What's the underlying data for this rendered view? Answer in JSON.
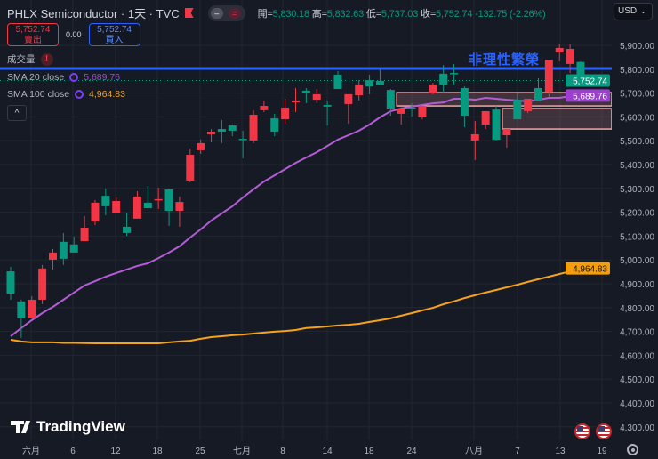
{
  "header": {
    "symbol": "PHLX Semiconductor",
    "interval": "1天",
    "source": "TVC",
    "title": "PHLX Semiconductor · 1天 · TVC",
    "ohlc": [
      {
        "k": "開",
        "v": "5,830.18"
      },
      {
        "k": "高",
        "v": "5,832.63"
      },
      {
        "k": "低",
        "v": "5,737.03"
      },
      {
        "k": "收",
        "v": "5,752.74"
      }
    ],
    "change": "-132.75 (-2.26%)"
  },
  "trade": {
    "sell_price": "5,752.74",
    "sell_label": "賣出",
    "spread": "0.00",
    "buy_price": "5,752.74",
    "buy_label": "買入"
  },
  "legend": {
    "volume": "成交量",
    "volume_warning": "!",
    "sma20_label": "SMA 20 close",
    "sma20_value": "5,689.76",
    "sma100_label": "SMA 100 close",
    "sma100_value": "4,964.83",
    "collapse": "^"
  },
  "currency": "USD",
  "annotation": "非理性繁榮",
  "brand": "TradingView",
  "colors": {
    "up": "#f23645",
    "down": "#089981",
    "sma20": "#b35cd6",
    "sma100": "#f7a21b",
    "hline": "#2962ff",
    "zone": "#f4a6a6",
    "background": "#161a25"
  },
  "icons": [
    "flag-icon",
    "indicator-toggle-icon",
    "warning-icon",
    "collapse-icon",
    "chevron-down-icon",
    "us-flag-event-icon",
    "settings-gear-icon"
  ],
  "chart_data": {
    "type": "candlestick",
    "ylim": [
      4300,
      5950
    ],
    "y_ticks": [
      "5,900.00",
      "5,800.00",
      "5,700.00",
      "5,600.00",
      "5,500.00",
      "5,400.00",
      "5,300.00",
      "5,200.00",
      "5,100.00",
      "5,000.00",
      "4,900.00",
      "4,800.00",
      "4,700.00",
      "4,600.00",
      "4,500.00",
      "4,400.00",
      "4,300.00"
    ],
    "y_tick_values": [
      5900,
      5800,
      5700,
      5600,
      5500,
      5400,
      5300,
      5200,
      5100,
      5000,
      4900,
      4800,
      4700,
      4600,
      4500,
      4400,
      4300
    ],
    "x_ticks": [
      "六月",
      "6",
      "12",
      "18",
      "25",
      "七月",
      "8",
      "14",
      "18",
      "24",
      "八月",
      "7",
      "13",
      "19"
    ],
    "grid": true,
    "ohlc": [
      [
        4952,
        4971,
        4833,
        4859
      ],
      [
        4826,
        4833,
        4673,
        4755
      ],
      [
        4755,
        4848,
        4755,
        4833
      ],
      [
        4833,
        4979,
        4815,
        4964
      ],
      [
        5001,
        5046,
        4960,
        5031
      ],
      [
        5076,
        5113,
        4979,
        5005
      ],
      [
        5065,
        5098,
        5031,
        5031
      ],
      [
        5079,
        5184,
        5079,
        5135
      ],
      [
        5161,
        5251,
        5146,
        5240
      ],
      [
        5269,
        5299,
        5187,
        5225
      ],
      [
        5195,
        5262,
        5195,
        5247
      ],
      [
        5139,
        5195,
        5101,
        5113
      ],
      [
        5173,
        5288,
        5173,
        5266
      ],
      [
        5240,
        5311,
        5217,
        5217
      ],
      [
        5251,
        5303,
        5214,
        5255
      ],
      [
        5296,
        5299,
        5143,
        5206
      ],
      [
        5206,
        5266,
        5139,
        5243
      ],
      [
        5333,
        5467,
        5326,
        5441
      ],
      [
        5460,
        5505,
        5445,
        5490
      ],
      [
        5527,
        5549,
        5493,
        5538
      ],
      [
        5549,
        5587,
        5490,
        5538
      ],
      [
        5564,
        5568,
        5519,
        5542
      ],
      [
        5508,
        5542,
        5426,
        5504
      ],
      [
        5501,
        5628,
        5490,
        5609
      ],
      [
        5628,
        5669,
        5620,
        5646
      ],
      [
        5594,
        5613,
        5519,
        5538
      ],
      [
        5590,
        5676,
        5572,
        5639
      ],
      [
        5661,
        5721,
        5620,
        5669
      ],
      [
        5710,
        5721,
        5658,
        5702
      ],
      [
        5672,
        5717,
        5658,
        5695
      ],
      [
        5650,
        5669,
        5564,
        5643
      ],
      [
        5777,
        5792,
        5717,
        5717
      ],
      [
        5654,
        5695,
        5572,
        5695
      ],
      [
        5691,
        5754,
        5669,
        5736
      ],
      [
        5754,
        5777,
        5695,
        5728
      ],
      [
        5751,
        5803,
        5732,
        5732
      ],
      [
        5713,
        5717,
        5605,
        5635
      ],
      [
        5613,
        5640,
        5568,
        5635
      ],
      [
        5639,
        5657,
        5602,
        5635
      ],
      [
        5598,
        5646,
        5590,
        5646
      ],
      [
        5699,
        5743,
        5695,
        5736
      ],
      [
        5781,
        5818,
        5702,
        5736
      ],
      [
        5784,
        5822,
        5736,
        5781
      ],
      [
        5721,
        5728,
        5557,
        5605
      ],
      [
        5501,
        5583,
        5419,
        5527
      ],
      [
        5568,
        5624,
        5549,
        5624
      ],
      [
        5631,
        5646,
        5501,
        5504
      ],
      [
        5523,
        5549,
        5471,
        5549
      ],
      [
        5672,
        5699,
        5590,
        5590
      ],
      [
        5624,
        5676,
        5616,
        5676
      ],
      [
        5721,
        5762,
        5669,
        5669
      ],
      [
        5706,
        5840,
        5684,
        5840
      ],
      [
        5870,
        5907,
        5833,
        5889
      ],
      [
        5822,
        5904,
        5784,
        5885
      ],
      [
        5830.18,
        5832.63,
        5737.03,
        5752.74
      ]
    ],
    "series": [
      {
        "name": "SMA 20 close",
        "values": [
          4680,
          4714,
          4747,
          4777,
          4803,
          4833,
          4863,
          4893,
          4911,
          4930,
          4945,
          4960,
          4975,
          4986,
          5008,
          5031,
          5057,
          5094,
          5128,
          5165,
          5195,
          5225,
          5262,
          5296,
          5329,
          5355,
          5381,
          5407,
          5430,
          5452,
          5478,
          5505,
          5523,
          5542,
          5568,
          5598,
          5624,
          5635,
          5643,
          5650,
          5657,
          5661,
          5676,
          5676,
          5672,
          5680,
          5676,
          5672,
          5669,
          5665,
          5672,
          5680,
          5680,
          5687,
          5689.76
        ]
      },
      {
        "name": "SMA 100 close",
        "values": [
          4665,
          4658,
          4654,
          4654,
          4654,
          4652,
          4652,
          4651,
          4650,
          4650,
          4650,
          4650,
          4650,
          4650,
          4650,
          4654,
          4658,
          4661,
          4669,
          4676,
          4680,
          4684,
          4687,
          4691,
          4695,
          4699,
          4702,
          4706,
          4714,
          4717,
          4721,
          4725,
          4728,
          4732,
          4740,
          4747,
          4755,
          4766,
          4777,
          4788,
          4799,
          4814,
          4826,
          4840,
          4852,
          4863,
          4874,
          4885,
          4896,
          4908,
          4919,
          4930,
          4941,
          4952,
          4964.83
        ]
      }
    ],
    "horizontal_line": 5803,
    "zones": [
      {
        "from_index": 37,
        "top": 5702,
        "bottom": 5646
      },
      {
        "from_index": 47,
        "top": 5635,
        "bottom": 5549
      }
    ],
    "last_price": "5,752.74",
    "last_price_value": 5752.74,
    "price_tags": [
      {
        "label": "5,752.74",
        "value": 5752.74,
        "color": "#089981"
      },
      {
        "label": "5,689.76",
        "value": 5689.76,
        "color": "#9c3fd0"
      },
      {
        "label": "4,964.83",
        "value": 4964.83,
        "color": "#f59d0b"
      }
    ]
  }
}
